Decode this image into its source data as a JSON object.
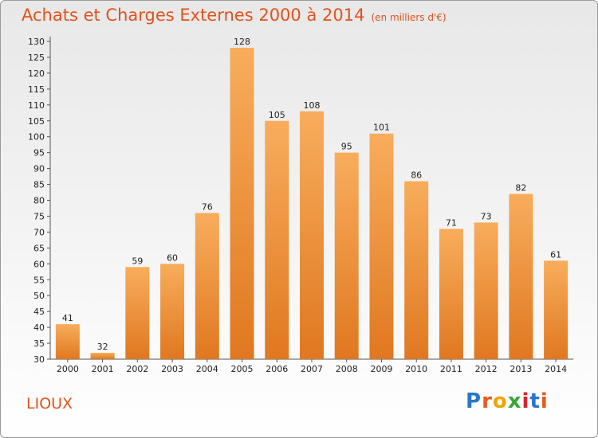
{
  "header": {
    "title": "Achats et Charges Externes 2000 à 2014",
    "unit": "(en milliers d'€)"
  },
  "commune": "LIOUX",
  "logo": {
    "letters": [
      "P",
      "r",
      "o",
      "x",
      "i",
      "t",
      "i"
    ]
  },
  "colors": {
    "bar_light": "#f7a855",
    "bar_dark": "#e07c22",
    "title": "#e2521c"
  },
  "chart_data": {
    "type": "bar",
    "categories": [
      "2000",
      "2001",
      "2002",
      "2003",
      "2004",
      "2005",
      "2006",
      "2007",
      "2008",
      "2009",
      "2010",
      "2011",
      "2012",
      "2013",
      "2014"
    ],
    "values": [
      41,
      32,
      59,
      60,
      76,
      128,
      105,
      108,
      95,
      101,
      86,
      71,
      73,
      82,
      61
    ],
    "title": "Achats et Charges Externes 2000 à 2014",
    "subtitle": "(en milliers d'€)",
    "xlabel": "",
    "ylabel": "",
    "ylim": [
      30,
      130
    ],
    "yticks": [
      30,
      35,
      40,
      45,
      50,
      55,
      60,
      65,
      70,
      75,
      80,
      85,
      90,
      95,
      100,
      105,
      110,
      115,
      120,
      125,
      130
    ],
    "grid": false,
    "legend": "none"
  }
}
